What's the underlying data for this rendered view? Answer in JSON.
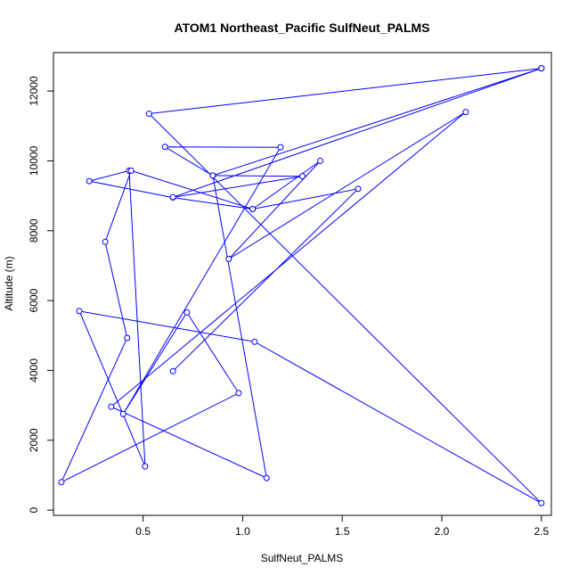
{
  "chart_data": {
    "type": "line",
    "title": "ATOM1 Northeast_Pacific SulfNeut_PALMS",
    "xlabel": "SulfNeut_PALMS",
    "ylabel": "Altitude (m)",
    "xlim": [
      0.05,
      2.55
    ],
    "ylim": [
      -150,
      13100
    ],
    "x_ticks": [
      0.5,
      1.0,
      1.5,
      2.0,
      2.5
    ],
    "x_tick_labels": [
      "0.5",
      "1.0",
      "1.5",
      "2.0",
      "2.5"
    ],
    "y_ticks": [
      0,
      2000,
      4000,
      6000,
      8000,
      10000,
      12000
    ],
    "y_tick_labels": [
      "0",
      "2000",
      "4000",
      "6000",
      "8000",
      "10000",
      "12000"
    ],
    "grid": false,
    "series_color": "#0000ff",
    "marker": "open-circle",
    "series": [
      {
        "x": [
          2.5,
          0.53,
          2.5,
          1.06,
          0.18,
          0.51,
          0.43,
          0.23,
          0.65,
          1.05,
          0.44,
          0.31,
          0.42,
          0.09,
          0.98,
          0.72,
          0.4,
          1.19,
          0.61,
          0.85,
          2.5,
          0.65,
          1.3,
          0.85,
          1.12,
          0.34,
          2.12,
          0.93,
          1.39,
          1.05,
          1.58,
          0.65
        ],
        "y": [
          12650,
          11350,
          200,
          4820,
          5700,
          1250,
          9720,
          9420,
          8950,
          8620,
          9720,
          7680,
          4930,
          800,
          3350,
          5660,
          2750,
          10390,
          10400,
          9580,
          12650,
          8960,
          9560,
          9580,
          920,
          2960,
          11400,
          7190,
          10000,
          8620,
          9200,
          3980
        ]
      }
    ]
  }
}
